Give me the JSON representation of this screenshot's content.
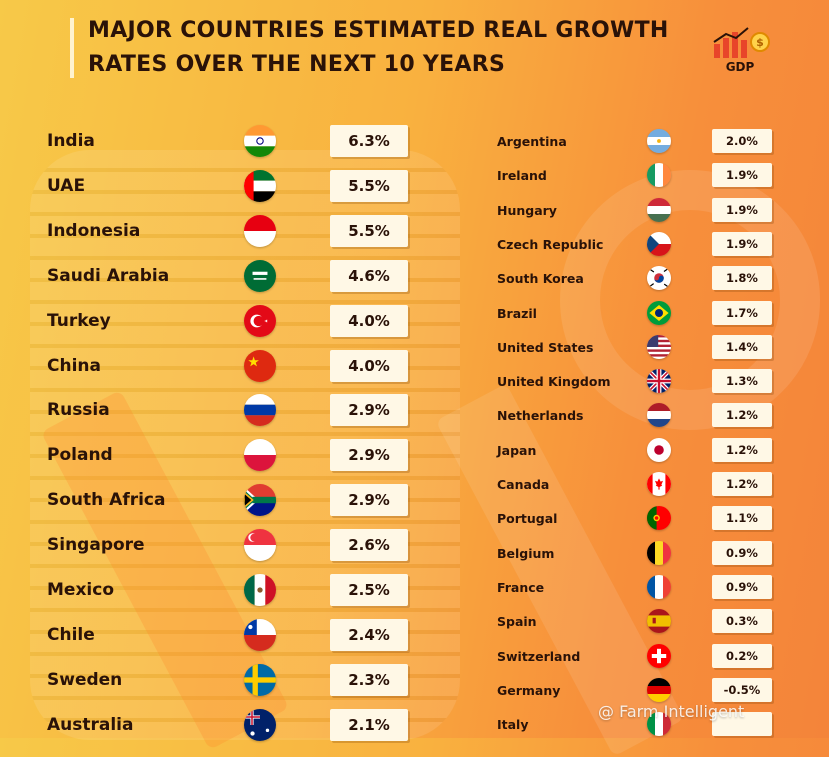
{
  "title": "MAJOR COUNTRIES ESTIMATED REAL GROWTH RATES OVER THE NEXT 10 YEARS",
  "logo_text": "GDP",
  "watermark": "@ Farm Intelligent",
  "chart_data": {
    "type": "table",
    "title": "MAJOR COUNTRIES ESTIMATED REAL GROWTH RATES OVER THE NEXT 10 YEARS",
    "columns": [
      {
        "rows": [
          {
            "country": "India",
            "value": "6.3%",
            "flag": "india-flag-icon"
          },
          {
            "country": "UAE",
            "value": "5.5%",
            "flag": "uae-flag-icon"
          },
          {
            "country": "Indonesia",
            "value": "5.5%",
            "flag": "indonesia-flag-icon"
          },
          {
            "country": "Saudi Arabia",
            "value": "4.6%",
            "flag": "saudi-arabia-flag-icon"
          },
          {
            "country": "Turkey",
            "value": "4.0%",
            "flag": "turkey-flag-icon"
          },
          {
            "country": "China",
            "value": "4.0%",
            "flag": "china-flag-icon"
          },
          {
            "country": "Russia",
            "value": "2.9%",
            "flag": "russia-flag-icon"
          },
          {
            "country": "Poland",
            "value": "2.9%",
            "flag": "poland-flag-icon"
          },
          {
            "country": "South Africa",
            "value": "2.9%",
            "flag": "south-africa-flag-icon"
          },
          {
            "country": "Singapore",
            "value": "2.6%",
            "flag": "singapore-flag-icon"
          },
          {
            "country": "Mexico",
            "value": "2.5%",
            "flag": "mexico-flag-icon"
          },
          {
            "country": "Chile",
            "value": "2.4%",
            "flag": "chile-flag-icon"
          },
          {
            "country": "Sweden",
            "value": "2.3%",
            "flag": "sweden-flag-icon"
          },
          {
            "country": "Australia",
            "value": "2.1%",
            "flag": "australia-flag-icon"
          }
        ]
      },
      {
        "rows": [
          {
            "country": "Argentina",
            "value": "2.0%",
            "flag": "argentina-flag-icon"
          },
          {
            "country": "Ireland",
            "value": "1.9%",
            "flag": "ireland-flag-icon"
          },
          {
            "country": "Hungary",
            "value": "1.9%",
            "flag": "hungary-flag-icon"
          },
          {
            "country": "Czech Republic",
            "value": "1.9%",
            "flag": "czech-republic-flag-icon"
          },
          {
            "country": "South Korea",
            "value": "1.8%",
            "flag": "south-korea-flag-icon"
          },
          {
            "country": "Brazil",
            "value": "1.7%",
            "flag": "brazil-flag-icon"
          },
          {
            "country": "United States",
            "value": "1.4%",
            "flag": "united-states-flag-icon"
          },
          {
            "country": "United Kingdom",
            "value": "1.3%",
            "flag": "united-kingdom-flag-icon"
          },
          {
            "country": "Netherlands",
            "value": "1.2%",
            "flag": "netherlands-flag-icon"
          },
          {
            "country": "Japan",
            "value": "1.2%",
            "flag": "japan-flag-icon"
          },
          {
            "country": "Canada",
            "value": "1.2%",
            "flag": "canada-flag-icon"
          },
          {
            "country": "Portugal",
            "value": "1.1%",
            "flag": "portugal-flag-icon"
          },
          {
            "country": "Belgium",
            "value": "0.9%",
            "flag": "belgium-flag-icon"
          },
          {
            "country": "France",
            "value": "0.9%",
            "flag": "france-flag-icon"
          },
          {
            "country": "Spain",
            "value": "0.3%",
            "flag": "spain-flag-icon"
          },
          {
            "country": "Switzerland",
            "value": "0.2%",
            "flag": "switzerland-flag-icon"
          },
          {
            "country": "Germany",
            "value": "-0.5%",
            "flag": "germany-flag-icon"
          },
          {
            "country": "Italy",
            "value": "",
            "flag": "italy-flag-icon"
          }
        ]
      }
    ]
  }
}
